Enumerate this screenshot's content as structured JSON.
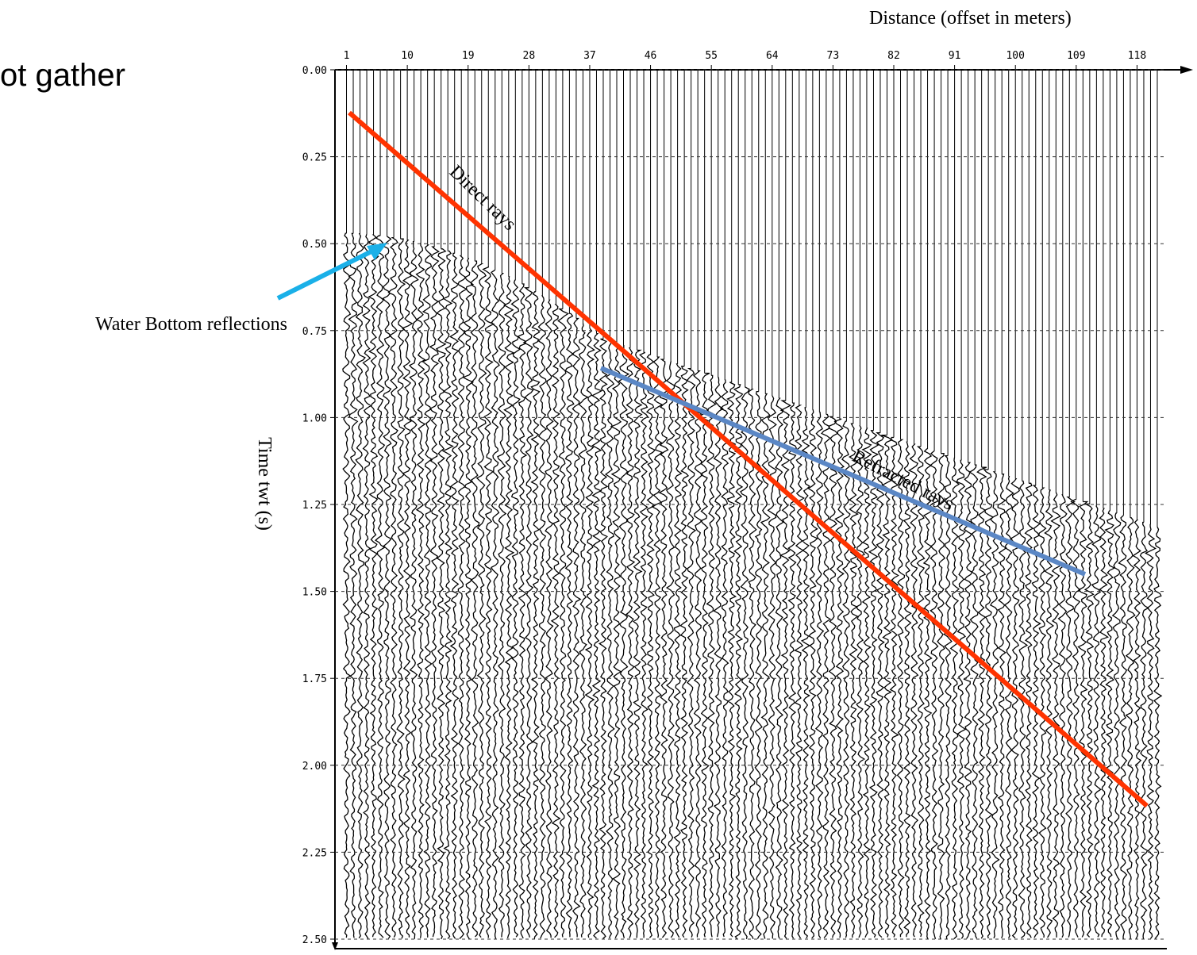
{
  "chart_data": {
    "type": "seismic",
    "title": "ot gather",
    "xlabel": "Distance (offset in meters)",
    "ylabel": "Time twt (s)",
    "xlim": [
      0,
      123
    ],
    "xticks": [
      1,
      10,
      19,
      28,
      37,
      46,
      55,
      64,
      73,
      82,
      91,
      100,
      109,
      118
    ],
    "ylim": [
      0,
      2.5
    ],
    "yticks": [
      {
        "value": 0,
        "label": "0.00"
      },
      {
        "value": 0.25,
        "label": "0.25"
      },
      {
        "value": 0.5,
        "label": "0.50"
      },
      {
        "value": 0.75,
        "label": "0.75"
      },
      {
        "value": 1,
        "label": "1.00"
      },
      {
        "value": 1.25,
        "label": "1.25"
      },
      {
        "value": 1.5,
        "label": "1.50"
      },
      {
        "value": 1.75,
        "label": "1.75"
      },
      {
        "value": 2,
        "label": "2.00"
      },
      {
        "value": 2.25,
        "label": "2.25"
      },
      {
        "value": 2.5,
        "label": "2.50"
      }
    ],
    "grid": true,
    "annotations": [
      "Water Bottom reflections",
      "Direct rays",
      "Refracted rays"
    ]
  }
}
